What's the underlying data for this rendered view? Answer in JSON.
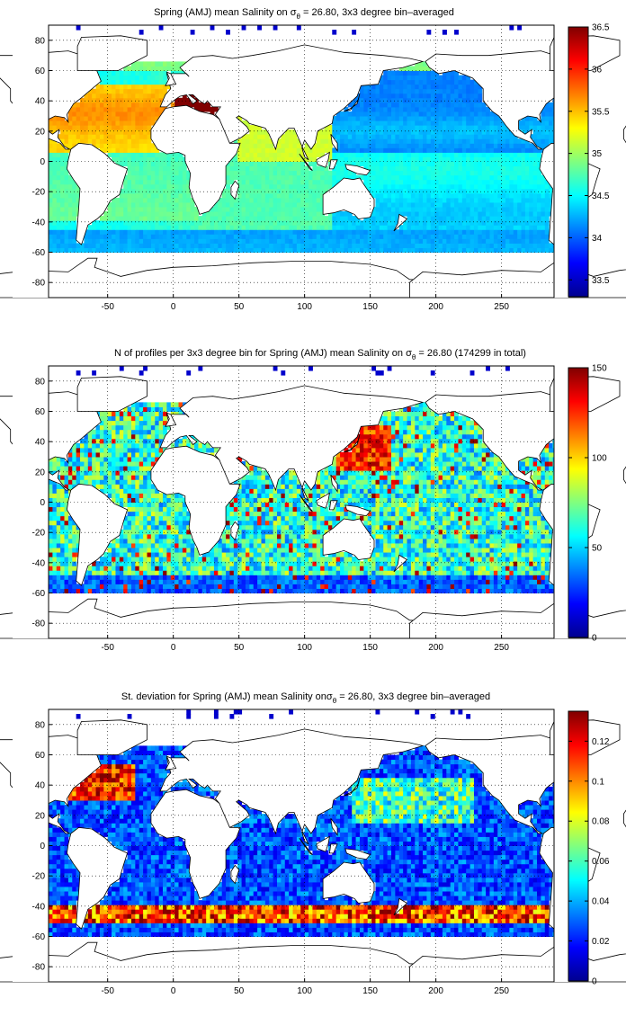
{
  "chart_data": [
    {
      "type": "heatmap",
      "title_prefix": "Spring (AMJ) mean Salinity on σ",
      "title_sub": "θ",
      "title_suffix": " = 26.80, 3x3 degree bin–averaged",
      "xlim": [
        -95,
        290
      ],
      "ylim": [
        -90,
        90
      ],
      "x_ticks": [
        -50,
        0,
        50,
        100,
        150,
        200,
        250
      ],
      "y_ticks": [
        80,
        60,
        40,
        20,
        0,
        -20,
        -40,
        -60,
        -80
      ],
      "colorbar": {
        "min": 33.3,
        "max": 36.5,
        "ticks": [
          33.5,
          34,
          34.5,
          35,
          35.5,
          36,
          36.5
        ]
      },
      "grid": true,
      "colormap": "jet"
    },
    {
      "type": "heatmap",
      "title_prefix": "N of profiles per 3x3 degree bin for Spring (AMJ) mean Salinity on σ",
      "title_sub": "θ",
      "title_suffix": " = 26.80 (174299 in total)",
      "xlim": [
        -95,
        290
      ],
      "ylim": [
        -90,
        90
      ],
      "x_ticks": [
        -50,
        0,
        50,
        100,
        150,
        200,
        250
      ],
      "y_ticks": [
        80,
        60,
        40,
        20,
        0,
        -20,
        -40,
        -60,
        -80
      ],
      "colorbar": {
        "min": 0,
        "max": 150,
        "ticks": [
          0,
          50,
          100,
          150
        ]
      },
      "grid": true,
      "colormap": "jet"
    },
    {
      "type": "heatmap",
      "title_prefix": "St. deviation for Spring (AMJ) mean Salinity onσ",
      "title_sub": "θ",
      "title_suffix": " = 26.80, 3x3 degree bin–averaged",
      "xlim": [
        -95,
        290
      ],
      "ylim": [
        -90,
        90
      ],
      "x_ticks": [
        -50,
        0,
        50,
        100,
        150,
        200,
        250
      ],
      "y_ticks": [
        80,
        60,
        40,
        20,
        0,
        -20,
        -40,
        -60,
        -80
      ],
      "colorbar": {
        "min": 0,
        "max": 0.135,
        "ticks": [
          0,
          0.02,
          0.04,
          0.06,
          0.08,
          0.1,
          0.12
        ]
      },
      "grid": true,
      "colormap": "jet"
    }
  ]
}
